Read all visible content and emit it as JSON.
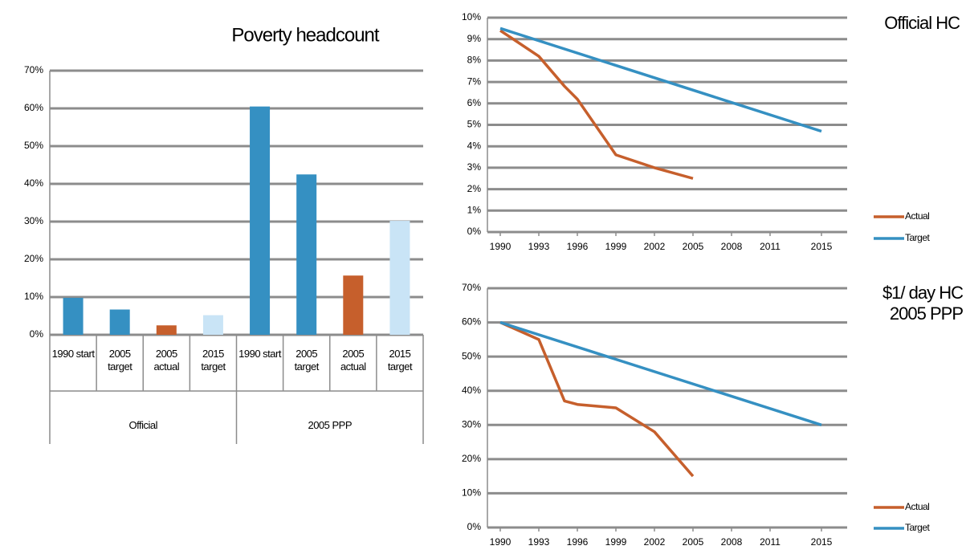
{
  "chart_data": [
    {
      "type": "bar",
      "title": "Poverty headcount",
      "categories": [
        "1990 start",
        "2005 target",
        "2005 actual",
        "2015 target",
        "1990 start",
        "2005 target",
        "2005 actual",
        "2015 target"
      ],
      "groups": [
        "Official",
        "2005 PPP"
      ],
      "values": [
        9.8,
        6.7,
        2.5,
        5.2,
        60.5,
        42.5,
        15.7,
        30.2
      ],
      "colors": [
        "#3590c2",
        "#3590c2",
        "#c65f2c",
        "#c9e4f6",
        "#3590c2",
        "#3590c2",
        "#c65f2c",
        "#c9e4f6"
      ],
      "ylim": [
        0,
        70
      ],
      "yticks": [
        {
          "value": 0,
          "label": "0%"
        },
        {
          "value": 10,
          "label": "10%"
        },
        {
          "value": 20,
          "label": "20%"
        },
        {
          "value": 30,
          "label": "30%"
        },
        {
          "value": 40,
          "label": "40%"
        },
        {
          "value": 50,
          "label": "50%"
        },
        {
          "value": 60,
          "label": "60%"
        },
        {
          "value": 70,
          "label": "70%"
        }
      ],
      "grid": true
    },
    {
      "type": "line",
      "title": "Official HC",
      "series": [
        {
          "name": "Actual",
          "color": "#c65f2c",
          "x": [
            1990,
            1993,
            1995,
            1996,
            1999,
            2002,
            2005
          ],
          "values": [
            9.4,
            8.2,
            6.8,
            6.2,
            3.6,
            3.0,
            2.5
          ]
        },
        {
          "name": "Target",
          "color": "#3590c2",
          "x": [
            1990,
            2015
          ],
          "values": [
            9.5,
            4.7
          ]
        }
      ],
      "xlim": [
        1989,
        2017
      ],
      "xticks": [
        1990,
        1993,
        1996,
        1999,
        2002,
        2005,
        2008,
        2011,
        2015
      ],
      "ylim": [
        0,
        10
      ],
      "yticks": [
        {
          "value": 0,
          "label": "0%"
        },
        {
          "value": 1,
          "label": "1%"
        },
        {
          "value": 2,
          "label": "2%"
        },
        {
          "value": 3,
          "label": "3%"
        },
        {
          "value": 4,
          "label": "4%"
        },
        {
          "value": 5,
          "label": "5%"
        },
        {
          "value": 6,
          "label": "6%"
        },
        {
          "value": 7,
          "label": "7%"
        },
        {
          "value": 8,
          "label": "8%"
        },
        {
          "value": 9,
          "label": "9%"
        },
        {
          "value": 10,
          "label": "10%"
        }
      ],
      "grid": true,
      "legend": "lower right"
    },
    {
      "type": "line",
      "title": "$1/ day HC 2005 PPP",
      "series": [
        {
          "name": "Actual",
          "color": "#c65f2c",
          "x": [
            1990,
            1993,
            1995,
            1996,
            1999,
            2002,
            2005
          ],
          "values": [
            60,
            55,
            37,
            36,
            35,
            28,
            15
          ]
        },
        {
          "name": "Target",
          "color": "#3590c2",
          "x": [
            1990,
            2015
          ],
          "values": [
            60,
            30
          ]
        }
      ],
      "xlim": [
        1989,
        2017
      ],
      "xticks": [
        1990,
        1993,
        1996,
        1999,
        2002,
        2005,
        2008,
        2011,
        2015
      ],
      "ylim": [
        0,
        70
      ],
      "yticks": [
        {
          "value": 0,
          "label": "0%"
        },
        {
          "value": 10,
          "label": "10%"
        },
        {
          "value": 20,
          "label": "20%"
        },
        {
          "value": 30,
          "label": "30%"
        },
        {
          "value": 40,
          "label": "40%"
        },
        {
          "value": 50,
          "label": "50%"
        },
        {
          "value": 60,
          "label": "60%"
        },
        {
          "value": 70,
          "label": "70%"
        }
      ],
      "grid": true,
      "legend": "lower right"
    }
  ]
}
